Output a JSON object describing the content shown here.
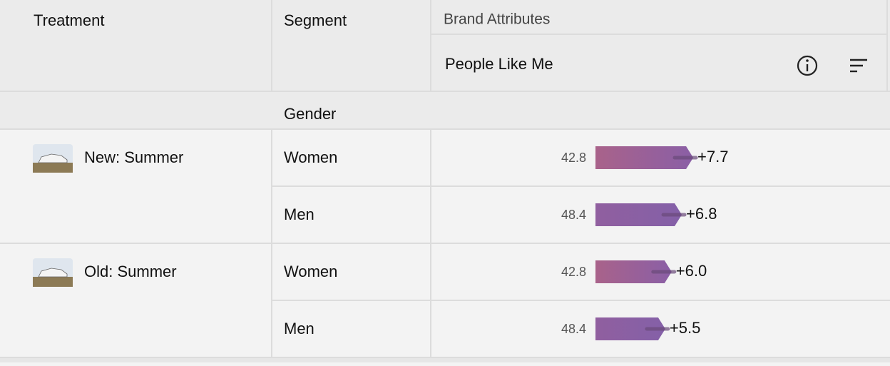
{
  "header": {
    "treatment": "Treatment",
    "segment": "Segment",
    "group": "Brand Attributes",
    "metric": "People Like Me"
  },
  "section": "Gender",
  "treatments": [
    {
      "name": "New: Summer",
      "rows": [
        {
          "segment": "Women",
          "base": 42.8,
          "delta": 7.7,
          "delta_label": "+7.7"
        },
        {
          "segment": "Men",
          "base": 48.4,
          "delta": 6.8,
          "delta_label": "+6.8"
        }
      ]
    },
    {
      "name": "Old: Summer",
      "rows": [
        {
          "segment": "Women",
          "base": 42.8,
          "delta": 6.0,
          "delta_label": "+6.0"
        },
        {
          "segment": "Men",
          "base": 48.4,
          "delta": 5.5,
          "delta_label": "+5.5"
        }
      ]
    }
  ]
}
